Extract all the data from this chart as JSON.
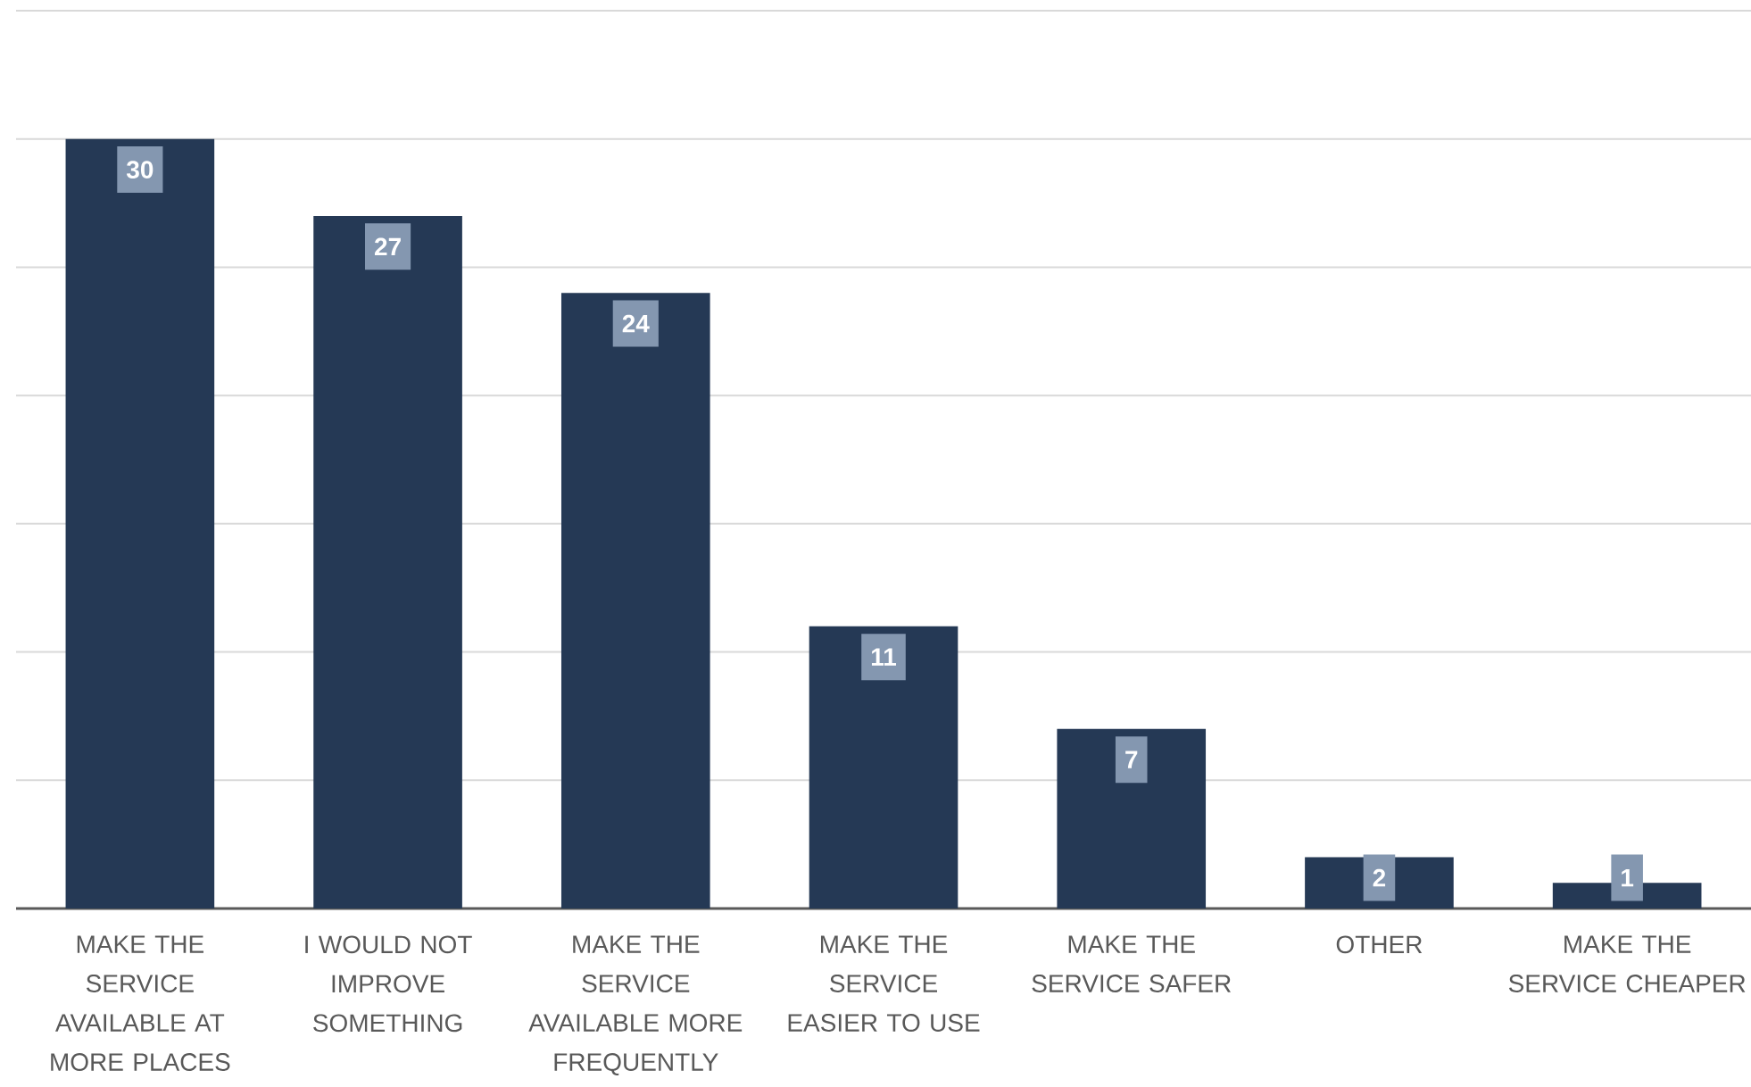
{
  "chart_data": {
    "type": "bar",
    "categories": [
      "MAKE THE SERVICE AVAILABLE AT MORE PLACES",
      "I WOULD NOT IMPROVE SOMETHING",
      "MAKE THE SERVICE AVAILABLE MORE FREQUENTLY",
      "MAKE THE SERVICE EASIER TO USE",
      "MAKE THE SERVICE SAFER",
      "OTHER",
      "MAKE THE SERVICE CHEAPER"
    ],
    "values": [
      30,
      27,
      24,
      11,
      7,
      2,
      1
    ],
    "color": "#253955",
    "ylim": [
      0,
      35
    ],
    "yticks": [
      {
        "value": 0,
        "label": null
      },
      {
        "value": 5,
        "label": null
      },
      {
        "value": 10,
        "label": null
      },
      {
        "value": 15,
        "label": null
      },
      {
        "value": 20,
        "label": null
      },
      {
        "value": 25,
        "label": null
      },
      {
        "value": 30,
        "label": null
      },
      {
        "value": 35,
        "label": null
      }
    ],
    "grid": "y",
    "tick_labels": "x",
    "data_labels": true
  }
}
